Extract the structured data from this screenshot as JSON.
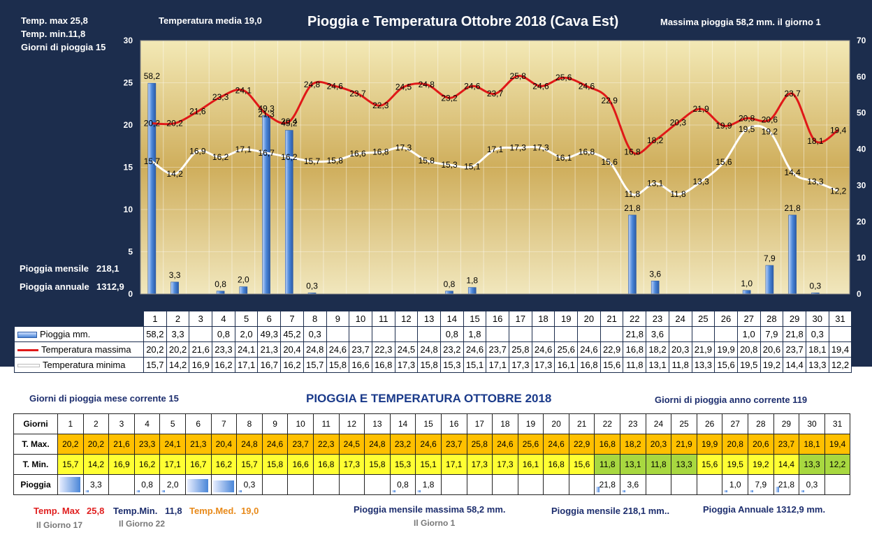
{
  "header": {
    "temp_max": "Temp. max  25,8",
    "temp_min": "Temp.  min.11,8",
    "rain_days": "Giorni  di pioggia   15",
    "temp_media": "Temperatura media  19,0",
    "title": "Pioggia e Temperatura Ottobre 2018 (Cava Est)",
    "max_rain": "Massima pioggia  58,2 mm.  il giorno  1",
    "rain_month_label": "Pioggia mensile",
    "rain_month_value": "218,1",
    "rain_year_label": "Pioggia annuale",
    "rain_year_value": "1312,9"
  },
  "chart_data": {
    "type": "bar",
    "title": "Pioggia e Temperatura Ottobre 2018 (Cava Est)",
    "categories": [
      "1",
      "2",
      "3",
      "4",
      "5",
      "6",
      "7",
      "8",
      "9",
      "10",
      "11",
      "12",
      "13",
      "14",
      "15",
      "16",
      "17",
      "18",
      "19",
      "20",
      "21",
      "22",
      "23",
      "24",
      "25",
      "26",
      "27",
      "28",
      "29",
      "30",
      "31"
    ],
    "y_left": {
      "min": 0,
      "max": 30,
      "ticks": [
        0,
        5,
        10,
        15,
        20,
        25,
        30
      ]
    },
    "y_right": {
      "min": 0,
      "max": 70,
      "ticks": [
        0,
        10,
        20,
        30,
        40,
        50,
        60,
        70
      ]
    },
    "series": [
      {
        "name": "Pioggia mm.",
        "type": "bar",
        "axis": "right",
        "color": "#4a86d8",
        "values": [
          58.2,
          3.3,
          null,
          0.8,
          2.0,
          49.3,
          45.2,
          0.3,
          null,
          null,
          null,
          null,
          null,
          0.8,
          1.8,
          null,
          null,
          null,
          null,
          null,
          null,
          21.8,
          3.6,
          null,
          null,
          null,
          1.0,
          7.9,
          21.8,
          0.3,
          null
        ],
        "labels": [
          "58,2",
          "3,3",
          "",
          "0,8",
          "2,0",
          "49,3",
          "45,2",
          "0,3",
          "",
          "",
          "",
          "",
          "",
          "0,8",
          "1,8",
          "",
          "",
          "",
          "",
          "",
          "",
          "21,8",
          "3,6",
          "",
          "",
          "",
          "1,0",
          "7,9",
          "21,8",
          "0,3",
          ""
        ]
      },
      {
        "name": "Temperatura massima",
        "type": "line",
        "axis": "left",
        "color": "#e01818",
        "values": [
          20.2,
          20.2,
          21.6,
          23.3,
          24.1,
          21.3,
          20.4,
          24.8,
          24.6,
          23.7,
          22.3,
          24.5,
          24.8,
          23.2,
          24.6,
          23.7,
          25.8,
          24.6,
          25.6,
          24.6,
          22.9,
          16.8,
          18.2,
          20.3,
          21.9,
          19.9,
          20.8,
          20.6,
          23.7,
          18.1,
          19.4
        ],
        "labels": [
          "20,2",
          "20,2",
          "21,6",
          "23,3",
          "24,1",
          "21,3",
          "20,4",
          "24,8",
          "24,6",
          "23,7",
          "22,3",
          "24,5",
          "24,8",
          "23,2",
          "24,6",
          "23,7",
          "25,8",
          "24,6",
          "25,6",
          "24,6",
          "22,9",
          "16,8",
          "18,2",
          "20,3",
          "21,9",
          "19,9",
          "20,8",
          "20,6",
          "23,7",
          "18,1",
          "19,4"
        ]
      },
      {
        "name": "Temperatura minima",
        "type": "line",
        "axis": "left",
        "color": "#ffffff",
        "values": [
          15.7,
          14.2,
          16.9,
          16.2,
          17.1,
          16.7,
          16.2,
          15.7,
          15.8,
          16.6,
          16.8,
          17.3,
          15.8,
          15.3,
          15.1,
          17.1,
          17.3,
          17.3,
          16.1,
          16.8,
          15.6,
          11.8,
          13.1,
          11.8,
          13.3,
          15.6,
          19.5,
          19.2,
          14.4,
          13.3,
          12.2
        ],
        "labels": [
          "15,7",
          "14,2",
          "16,9",
          "16,2",
          "17,1",
          "16,7",
          "16,2",
          "15,7",
          "15,8",
          "16,6",
          "16,8",
          "17,3",
          "15,8",
          "15,3",
          "15,1",
          "17,1",
          "17,3",
          "17,3",
          "16,1",
          "16,8",
          "15,6",
          "11,8",
          "13,1",
          "11,8",
          "13,3",
          "15,6",
          "19,5",
          "19,2",
          "14,4",
          "13,3",
          "12,2"
        ]
      }
    ]
  },
  "chart_table": {
    "rain_label": "Pioggia mm.",
    "max_label": "Temperatura massima",
    "min_label": "Temperatura minima"
  },
  "bottom": {
    "rain_days_month": "Giorni di pioggia mese corrente    15",
    "title": "PIOGGIA E TEMPERATURA OTTOBRE 2018",
    "rain_days_year": "Giorni di pioggia anno corrente  119",
    "row_days": "Giorni",
    "row_max": "T. Max.",
    "row_min": "T. Min.",
    "row_rain": "Pioggia",
    "f_temp_max_label": "Temp. Max",
    "f_temp_max_value": "25,8",
    "f_temp_min_label": "Temp.Min.",
    "f_temp_min_value": "11,8",
    "f_temp_med_label": "Temp.Med.",
    "f_temp_med_value": "19,0",
    "f_day17": "Il Giorno  17",
    "f_day22": "Il Giorno 22",
    "f_rain_max": "Pioggia mensile massima 58,2 mm.",
    "f_day1": "Il Giorno  1",
    "f_rain_month": "Pioggia mensile  218,1 mm..",
    "f_rain_year": "Pioggia Annuale  1312,9  mm."
  }
}
